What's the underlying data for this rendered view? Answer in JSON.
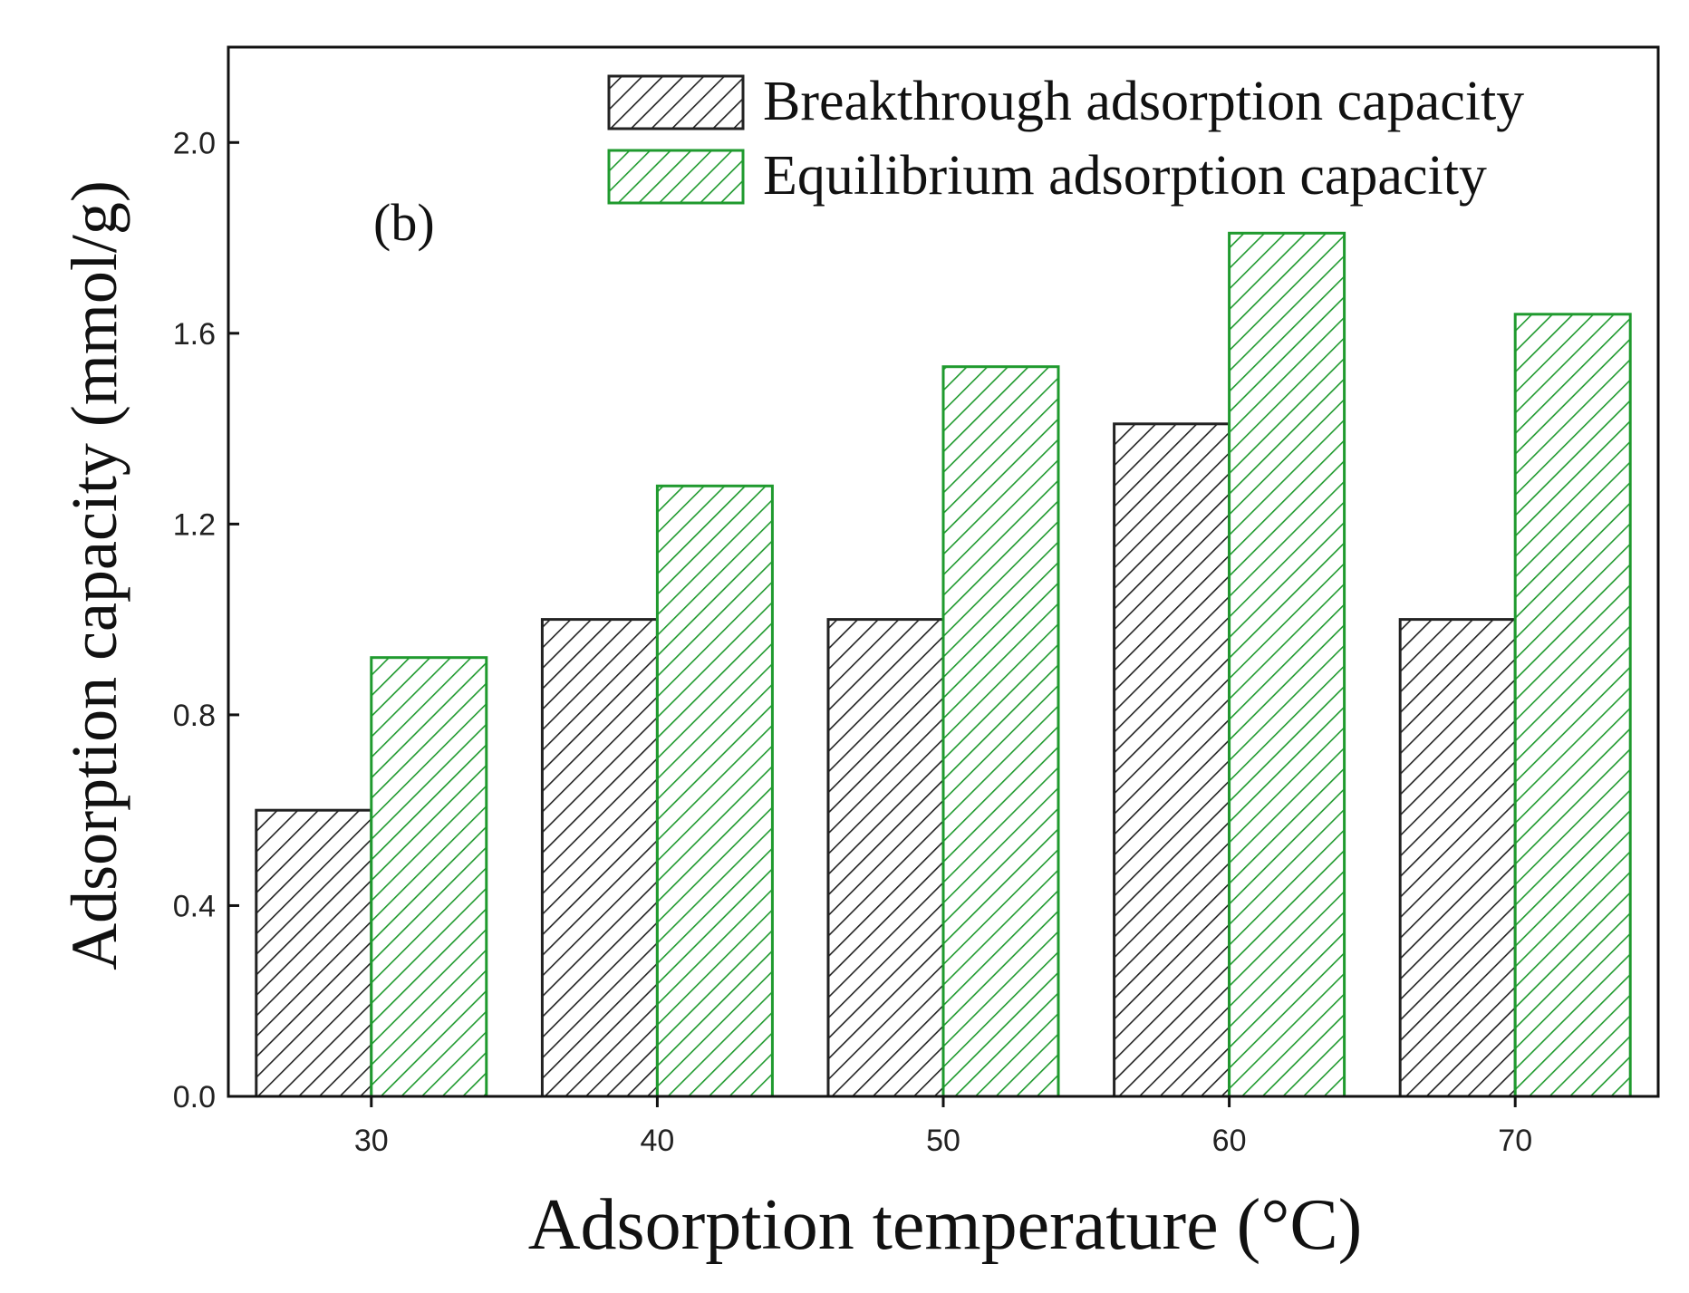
{
  "chart_data": {
    "type": "bar",
    "title": "",
    "panel_label": "(b)",
    "xlabel": "Adsorption temperature (°C)",
    "ylabel": "Adsorption capacity (mmol/g)",
    "categories": [
      "30",
      "40",
      "50",
      "60",
      "70"
    ],
    "ylim": [
      0,
      2.2
    ],
    "yticks": [
      0.0,
      0.4,
      0.8,
      1.2,
      1.6,
      2.0
    ],
    "ytick_labels": [
      "0.0",
      "0.4",
      "0.8",
      "1.2",
      "1.6",
      "2.0"
    ],
    "grid": false,
    "legend_position": "top-right",
    "series": [
      {
        "name": "Breakthrough adsorption capacity",
        "values": [
          0.6,
          1.0,
          1.0,
          1.41,
          1.0
        ],
        "color": "#222222",
        "pattern": "diagonal-hatch"
      },
      {
        "name": "Equilibrium adsorption capacity",
        "values": [
          0.92,
          1.28,
          1.53,
          1.81,
          1.64
        ],
        "color": "#1f9a2e",
        "pattern": "diagonal-hatch"
      }
    ]
  }
}
